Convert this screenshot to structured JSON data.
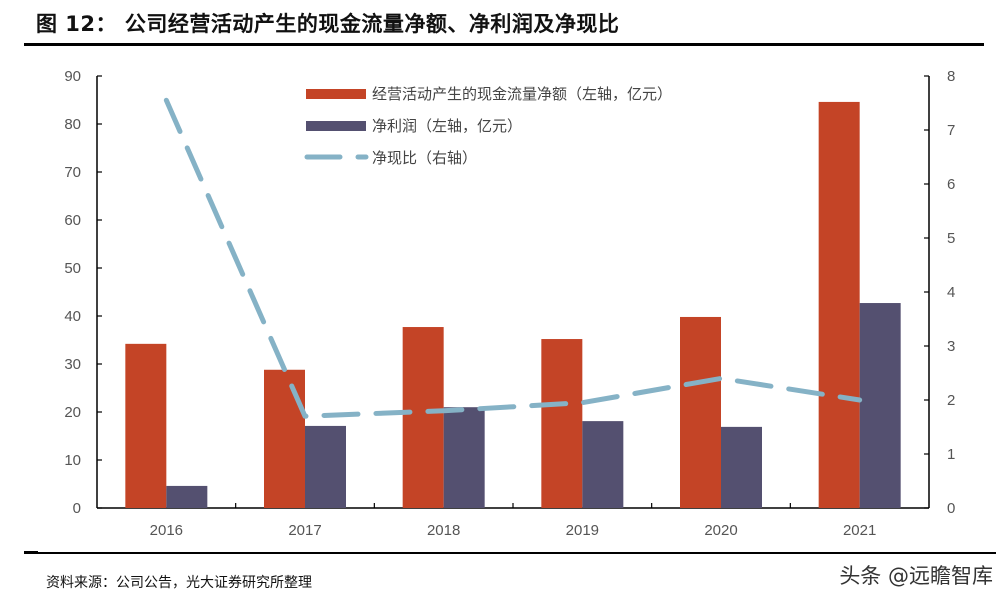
{
  "header": {
    "title": "图 12：   公司经营活动产生的现金流量净额、净利润及净现比"
  },
  "footer": {
    "source": "资料来源：公司公告，光大证券研究所整理",
    "watermark": "头条 @远瞻智库"
  },
  "colors": {
    "ocf": "#C44426",
    "net_profit": "#545070",
    "ratio": "#85B2C6",
    "axis": "#000000",
    "tick_text": "#555555"
  },
  "chart_data": {
    "type": "bar",
    "title": "公司经营活动产生的现金流量净额、净利润及净现比",
    "categories": [
      "2016",
      "2017",
      "2018",
      "2019",
      "2020",
      "2021"
    ],
    "series": [
      {
        "name": "经营活动产生的现金流量净额（左轴，亿元）",
        "type": "bar",
        "axis": "left",
        "values": [
          34.2,
          28.8,
          37.7,
          35.2,
          39.8,
          84.6
        ]
      },
      {
        "name": "净利润（左轴，亿元）",
        "type": "bar",
        "axis": "left",
        "values": [
          4.6,
          17.1,
          21.0,
          18.1,
          16.9,
          42.7
        ]
      },
      {
        "name": "净现比（右轴）",
        "type": "line",
        "style": "dashed",
        "axis": "right",
        "values": [
          7.55,
          1.7,
          1.8,
          1.95,
          2.4,
          2.0
        ]
      }
    ],
    "left_axis": {
      "label": "",
      "ylim": [
        0,
        90
      ],
      "ticks": [
        "0",
        "10",
        "20",
        "30",
        "40",
        "50",
        "60",
        "70",
        "80",
        "90"
      ]
    },
    "right_axis": {
      "label": "",
      "ylim": [
        0,
        8
      ],
      "ticks": [
        "0",
        "1",
        "2",
        "3",
        "4",
        "5",
        "6",
        "7",
        "8"
      ]
    },
    "xlabel": "",
    "grid": false,
    "legend_position": "top-center"
  }
}
